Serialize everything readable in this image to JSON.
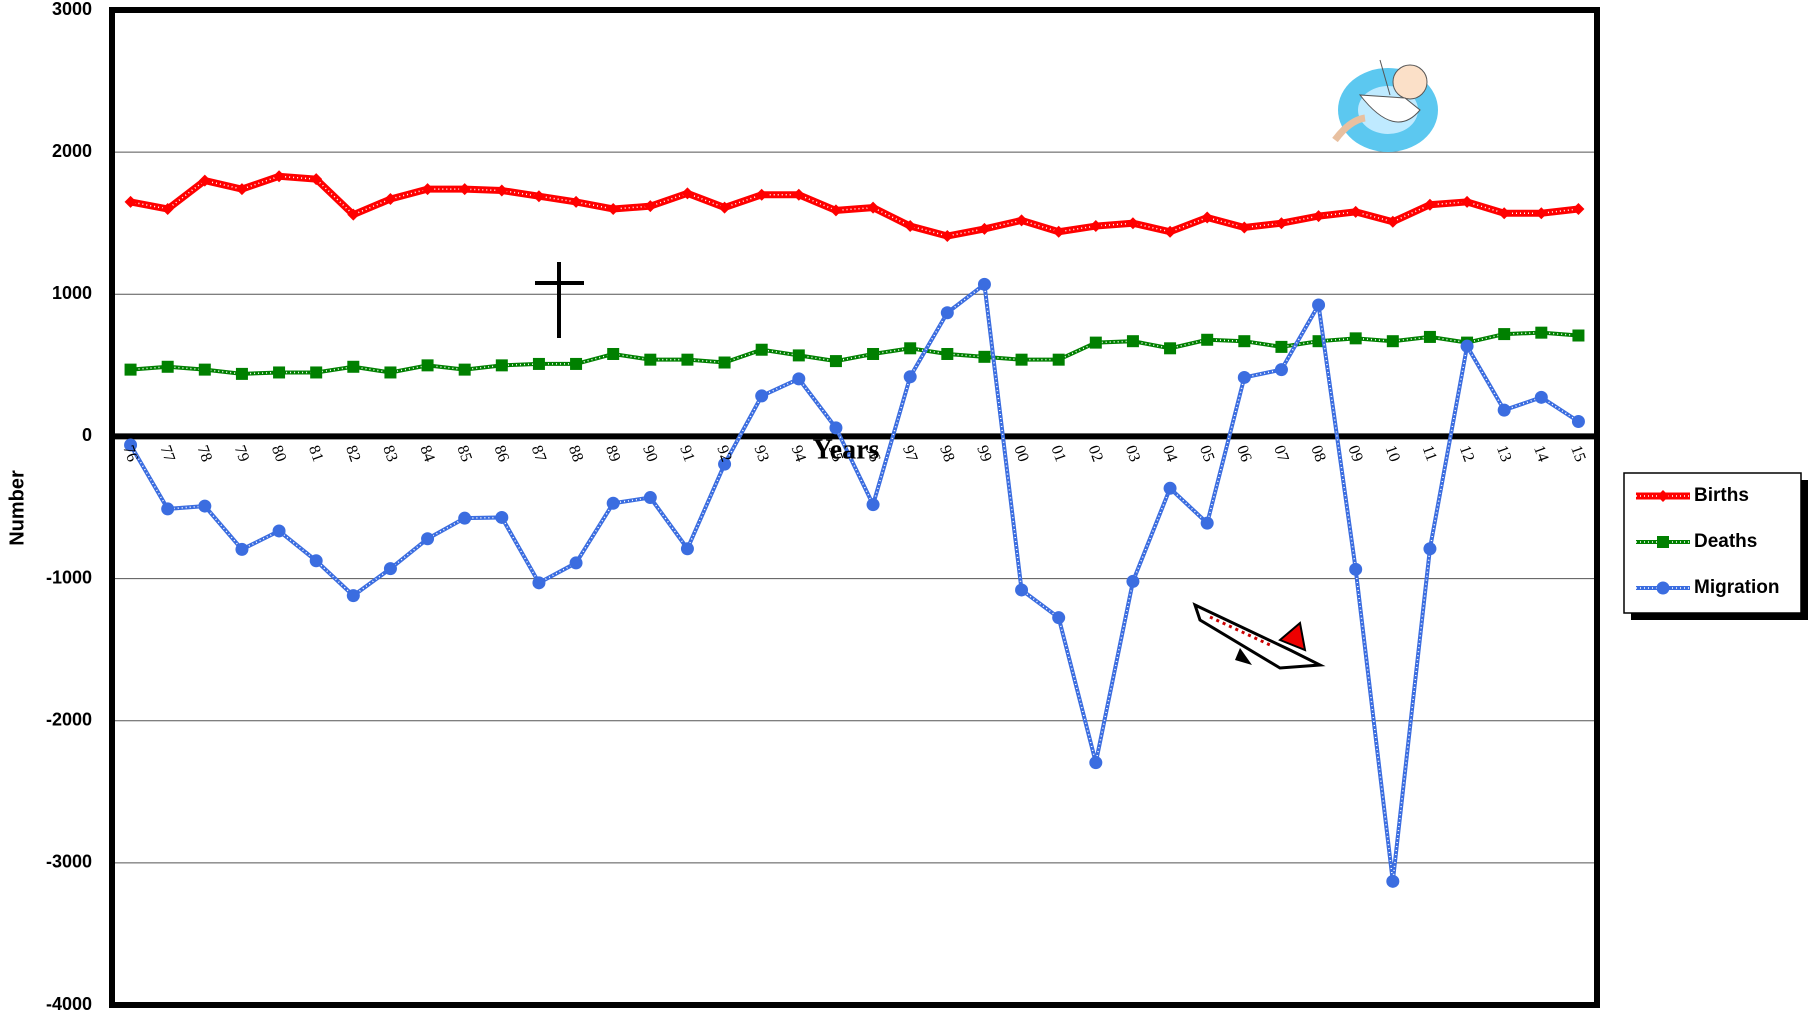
{
  "chart_data": {
    "type": "line",
    "y_label": "Number",
    "x_label": "Years",
    "categories": [
      "76",
      "77",
      "78",
      "79",
      "80",
      "81",
      "82",
      "83",
      "84",
      "85",
      "86",
      "87",
      "88",
      "89",
      "90",
      "91",
      "92",
      "93",
      "94",
      "95",
      "96",
      "97",
      "98",
      "99",
      "00",
      "01",
      "02",
      "03",
      "04",
      "05",
      "06",
      "07",
      "08",
      "09",
      "10",
      "11",
      "12",
      "13",
      "14",
      "15"
    ],
    "series": [
      {
        "name": "Births",
        "color": "#ff0000",
        "marker": "diamond",
        "values": [
          1650,
          1600,
          1800,
          1740,
          1830,
          1810,
          1560,
          1670,
          1740,
          1740,
          1730,
          1690,
          1650,
          1600,
          1620,
          1710,
          1610,
          1700,
          1700,
          1590,
          1610,
          1480,
          1410,
          1460,
          1520,
          1440,
          1480,
          1500,
          1440,
          1540,
          1470,
          1500,
          1550,
          1580,
          1510,
          1630,
          1650,
          1570,
          1570,
          1600
        ]
      },
      {
        "name": "Deaths",
        "color": "#008000",
        "marker": "square",
        "values": [
          470,
          490,
          470,
          440,
          450,
          450,
          490,
          450,
          500,
          470,
          500,
          510,
          510,
          580,
          540,
          540,
          520,
          610,
          570,
          530,
          580,
          620,
          580,
          560,
          540,
          540,
          660,
          670,
          620,
          680,
          670,
          630,
          670,
          690,
          670,
          700,
          660,
          720,
          730,
          710
        ]
      },
      {
        "name": "Migration",
        "color": "#3b6de0",
        "marker": "circle",
        "values": [
          -60,
          -510,
          -490,
          -795,
          -665,
          -875,
          -1120,
          -930,
          -720,
          -575,
          -570,
          -1030,
          -890,
          -470,
          -430,
          -790,
          -195,
          285,
          405,
          60,
          -480,
          420,
          870,
          1070,
          -1080,
          -1275,
          -2295,
          -1020,
          -365,
          -610,
          415,
          470,
          925,
          -935,
          -3130,
          -790,
          635,
          185,
          275,
          105
        ]
      }
    ],
    "ylim": [
      -4000,
      3000
    ],
    "yticks": [
      -4000,
      -3000,
      -2000,
      -1000,
      0,
      1000,
      2000,
      3000
    ],
    "grid": true,
    "legend": "right"
  }
}
